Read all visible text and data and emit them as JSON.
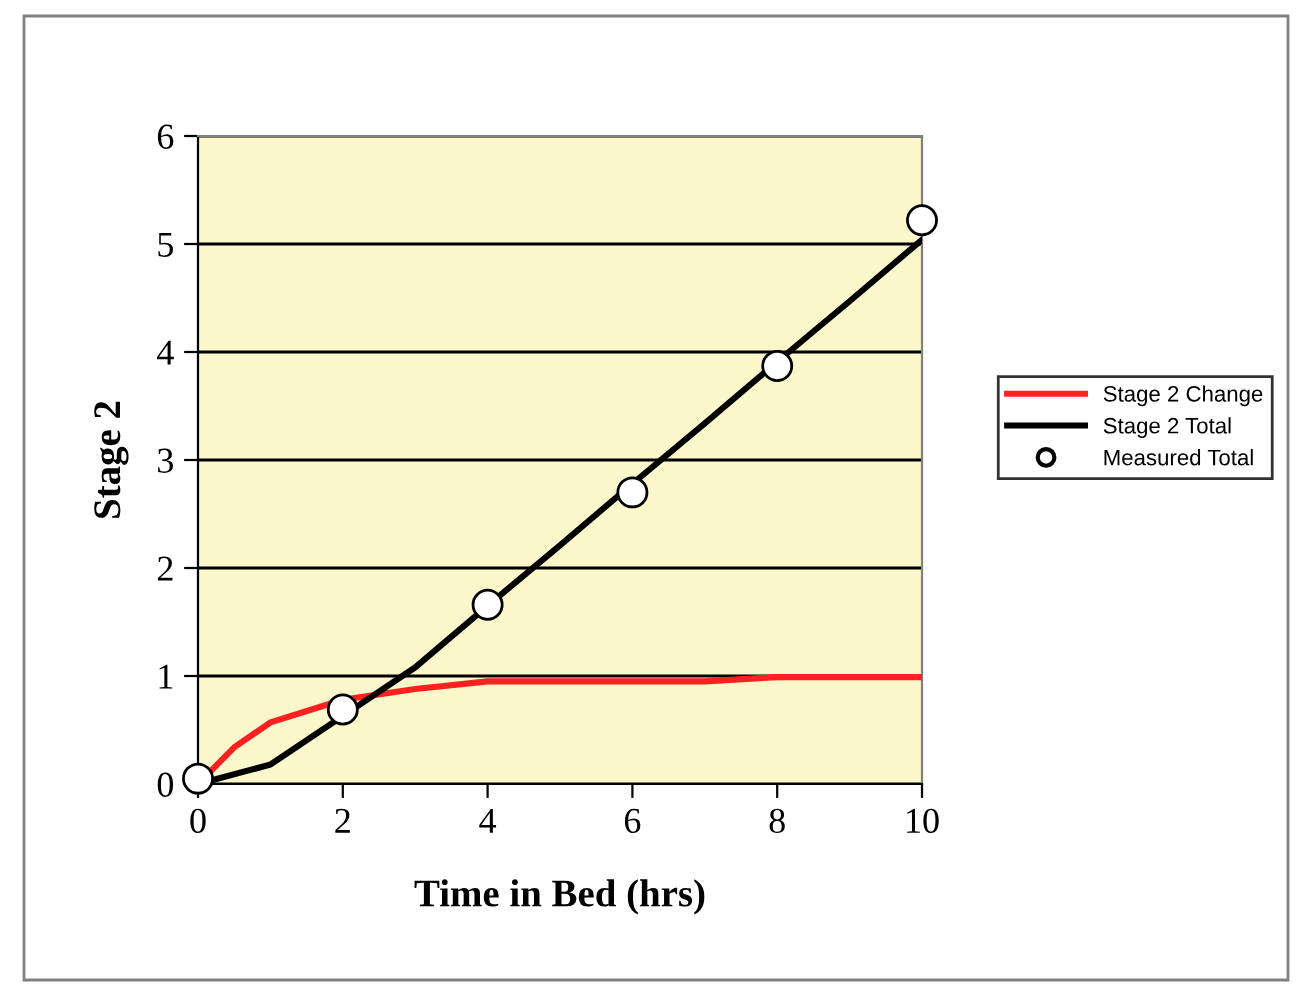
{
  "chart_data": {
    "type": "line",
    "xlabel": "Time in Bed (hrs)",
    "ylabel": "Stage 2",
    "xlim": [
      0,
      10
    ],
    "ylim": [
      0,
      6
    ],
    "xticks": [
      0,
      2,
      4,
      6,
      8,
      10
    ],
    "yticks": [
      0,
      1,
      2,
      3,
      4,
      5,
      6
    ],
    "grid": "y",
    "legend": "right",
    "series": [
      {
        "name": "Stage 2 Change",
        "color": "#ff2020",
        "x": [
          0,
          0.5,
          1,
          2,
          3,
          4,
          5,
          6,
          7,
          8,
          9,
          10
        ],
        "values": [
          0,
          0.34,
          0.57,
          0.78,
          0.88,
          0.95,
          0.95,
          0.95,
          0.95,
          0.99,
          0.99,
          0.99
        ]
      },
      {
        "name": "Stage 2 Total",
        "color": "#000000",
        "x": [
          0,
          1,
          2,
          3,
          4,
          5,
          6,
          7,
          8,
          9,
          10
        ],
        "values": [
          0,
          0.18,
          0.63,
          1.08,
          1.65,
          2.21,
          2.78,
          3.34,
          3.91,
          4.47,
          5.04
        ]
      },
      {
        "name": "Measured Total",
        "type": "scatter",
        "marker": "circle",
        "color": "#ffffff",
        "x": [
          0,
          2,
          4,
          6,
          8,
          10
        ],
        "values": [
          0.05,
          0.69,
          1.66,
          2.7,
          3.87,
          5.22
        ]
      }
    ]
  }
}
